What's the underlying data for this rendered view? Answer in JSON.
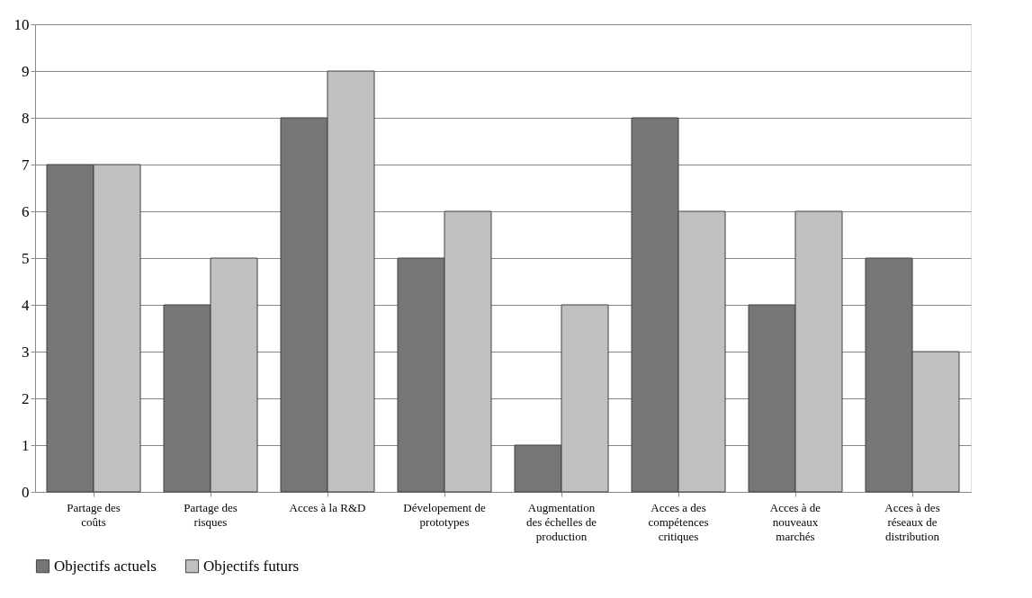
{
  "chart_data": {
    "type": "bar",
    "categories": [
      "Partage des coûts",
      "Partage des risques",
      "Acces à la R&D",
      "Dévelopement de prototypes",
      "Augmentation des échelles de production",
      "Acces a des compétences critiques",
      "Acces à de nouveaux marchés",
      "Acces à des réseaux de distribution"
    ],
    "series": [
      {
        "name": "Objectifs actuels",
        "color": "#767676",
        "values": [
          7,
          4,
          8,
          5,
          1,
          8,
          4,
          5
        ]
      },
      {
        "name": "Objectifs futurs",
        "color": "#c0c0c0",
        "values": [
          7,
          5,
          9,
          6,
          4,
          6,
          6,
          3
        ]
      }
    ],
    "ylim": [
      0,
      10
    ],
    "yticks": [
      0,
      1,
      2,
      3,
      4,
      5,
      6,
      7,
      8,
      9,
      10
    ],
    "grid": "y",
    "legend": "bottom"
  }
}
